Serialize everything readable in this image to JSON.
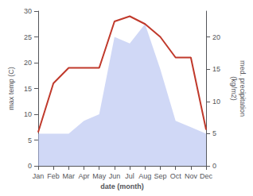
{
  "chart_data": {
    "type": "line",
    "xlabel": "date (month)",
    "ylabel": "max temp (C)",
    "y2label": "med. precipitation\n(kg/m2)",
    "categories": [
      "Jan",
      "Feb",
      "Mar",
      "Apr",
      "May",
      "Jun",
      "Jul",
      "Aug",
      "Sep",
      "Oct",
      "Nov",
      "Dec"
    ],
    "series": [
      {
        "type": "area",
        "color": "#b0bef0",
        "axis": "y2",
        "values": [
          5.0,
          5.0,
          5.0,
          7.0,
          8.0,
          20.0,
          19.0,
          22.0,
          15.0,
          7.0,
          6.0,
          5.0
        ]
      },
      {
        "type": "line",
        "color": "#c0392b",
        "values": [
          6.5,
          16.0,
          19.0,
          19.0,
          19.0,
          28.0,
          29.0,
          27.5,
          25.0,
          21.0,
          21.0,
          7.0
        ]
      }
    ],
    "ylim": [
      0,
      30
    ],
    "yticks": [
      0,
      5,
      10,
      15,
      20,
      25,
      30
    ],
    "y2lim": [
      0,
      24
    ],
    "y2ticks": [
      0,
      5,
      10,
      15,
      20
    ],
    "grid": false
  }
}
